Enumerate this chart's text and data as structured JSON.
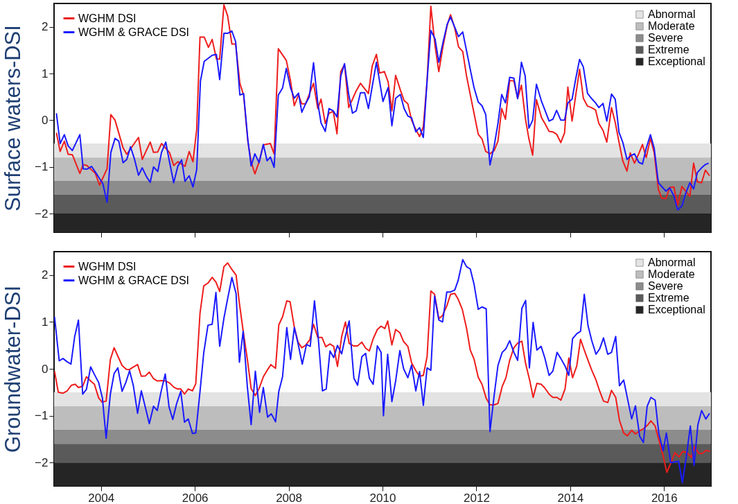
{
  "chart_data": [
    {
      "type": "line",
      "ylabel": "Surface waters-DSI",
      "xlim": [
        2003,
        2017
      ],
      "ylim": [
        -2.4,
        2.5
      ],
      "xticks": [
        2004,
        2006,
        2008,
        2010,
        2012,
        2014,
        2016
      ],
      "yticks": [
        -2,
        -1,
        0,
        1,
        2
      ],
      "tick_labels": "y",
      "grid": false,
      "legend": "top left",
      "bands": [
        {
          "axis": "y",
          "from": -0.5,
          "to": -0.8,
          "label": "Abnormal",
          "color": "#e3e3e3"
        },
        {
          "axis": "y",
          "from": -0.8,
          "to": -1.3,
          "label": "Moderate",
          "color": "#bdbdbd"
        },
        {
          "axis": "y",
          "from": -1.3,
          "to": -1.6,
          "label": "Severe",
          "color": "#8c8c8c"
        },
        {
          "axis": "y",
          "from": -1.6,
          "to": -2.0,
          "label": "Extreme",
          "color": "#5a5a5a"
        },
        {
          "axis": "y",
          "from": -2.0,
          "to": -2.4,
          "label": "Exceptional",
          "color": "#252525"
        }
      ],
      "series": [
        {
          "name": "WGHM DSI",
          "color": "#ee1c1c",
          "x": [
            2003.05,
            2003.13,
            2003.22,
            2003.3,
            2003.39,
            2003.55,
            2003.62,
            2003.7,
            2003.88,
            2003.97,
            2004.13,
            2004.21,
            2004.3,
            2004.47,
            2004.55,
            2004.8,
            2004.88,
            2005.05,
            2005.12,
            2005.21,
            2005.29,
            2005.46,
            2005.55,
            2005.64,
            2005.79,
            2005.88,
            2005.96,
            2006.04,
            2006.11,
            2006.2,
            2006.29,
            2006.37,
            2006.46,
            2006.53,
            2006.62,
            2006.7,
            2006.79,
            2006.87,
            2006.96,
            2007.04,
            2007.13,
            2007.2,
            2007.28,
            2007.37,
            2007.46,
            2007.61,
            2007.69,
            2007.78,
            2007.95,
            2008.04,
            2008.12,
            2008.21,
            2008.28,
            2008.36,
            2008.53,
            2008.62,
            2008.69,
            2008.78,
            2008.86,
            2008.95,
            2009.03,
            2009.11,
            2009.19,
            2009.28,
            2009.44,
            2009.53,
            2009.7,
            2009.78,
            2009.87,
            2009.94,
            2010.04,
            2010.12,
            2010.2,
            2010.28,
            2010.38,
            2010.46,
            2010.54,
            2010.62,
            2010.71,
            2010.79,
            2010.87,
            2010.95,
            2011.03,
            2011.12,
            2011.2,
            2011.29,
            2011.38,
            2011.45,
            2011.54,
            2011.62,
            2011.71,
            2011.79,
            2011.88,
            2011.95,
            2012.04,
            2012.12,
            2012.2,
            2012.29,
            2012.38,
            2012.46,
            2012.54,
            2012.62,
            2012.71,
            2012.8,
            2012.88,
            2012.96,
            2013.05,
            2013.12,
            2013.2,
            2013.28,
            2013.39,
            2013.46,
            2013.55,
            2013.63,
            2013.71,
            2013.8,
            2013.88,
            2013.95,
            2014.04,
            2014.12,
            2014.2,
            2014.28,
            2014.37,
            2014.45,
            2014.54,
            2014.61,
            2014.7,
            2014.78,
            2014.88,
            2014.96,
            2015.04,
            2015.12,
            2015.21,
            2015.28,
            2015.37,
            2015.46,
            2015.54,
            2015.62,
            2015.71,
            2015.79,
            2015.88,
            2015.95,
            2016.04,
            2016.12,
            2016.21,
            2016.29,
            2016.38,
            2016.46,
            2016.55,
            2016.63,
            2016.71,
            2016.8,
            2016.88,
            2016.97
          ],
          "values": [
            -0.27,
            -0.67,
            -0.45,
            -0.73,
            -0.74,
            -1.14,
            -0.95,
            -0.97,
            -1.14,
            -1.39,
            -1.04,
            0.12,
            0.0,
            -0.59,
            -0.73,
            -0.37,
            -0.84,
            -0.47,
            -0.69,
            -0.68,
            -0.5,
            -0.69,
            -0.97,
            -0.89,
            -0.99,
            -0.67,
            -0.89,
            -0.2,
            1.78,
            1.78,
            1.56,
            1.73,
            1.31,
            1.31,
            2.47,
            2.23,
            1.63,
            1.63,
            0.79,
            0.54,
            -0.45,
            -0.89,
            -1.15,
            -0.89,
            -0.53,
            -0.5,
            -0.72,
            1.53,
            1.28,
            0.84,
            0.31,
            0.54,
            0.35,
            0.35,
            0.79,
            0.25,
            0.45,
            -0.07,
            0.15,
            0.19,
            -0.29,
            1.04,
            1.19,
            0.27,
            0.63,
            0.79,
            0.57,
            1.16,
            1.41,
            1.01,
            1.04,
            0.82,
            0.2,
            0.96,
            0.65,
            0.42,
            0.35,
            0.0,
            -0.2,
            -0.35,
            -0.14,
            0.85,
            2.44,
            1.59,
            1.04,
            1.59,
            2.04,
            2.26,
            1.97,
            1.57,
            1.47,
            0.95,
            0.5,
            0.15,
            -0.3,
            -0.4,
            -0.67,
            -0.72,
            -0.65,
            -0.45,
            0.25,
            0.02,
            0.85,
            0.84,
            0.47,
            0.75,
            0.0,
            -0.4,
            -0.75,
            0.44,
            0.05,
            -0.07,
            -0.24,
            -0.25,
            -0.3,
            -0.48,
            -0.27,
            0.71,
            -0.02,
            0.55,
            1.09,
            0.47,
            0.3,
            0.27,
            0.22,
            -0.07,
            -0.22,
            -0.47,
            0.27,
            -0.05,
            -0.47,
            -0.87,
            -1.09,
            -0.7,
            -0.92,
            -0.72,
            -0.52,
            -0.8,
            -0.39,
            -0.7,
            -1.49,
            -1.67,
            -1.68,
            -1.44,
            -1.43,
            -1.82,
            -1.42,
            -1.52,
            -1.63,
            -0.92,
            -1.32,
            -1.34,
            -1.07,
            -1.19
          ]
        },
        {
          "name": "WGHM & GRACE DSI",
          "color": "#1a1aff",
          "x": [
            2003.05,
            2003.13,
            2003.22,
            2003.3,
            2003.39,
            2003.55,
            2003.62,
            2003.7,
            2003.8,
            2003.88,
            2004.04,
            2004.13,
            2004.21,
            2004.3,
            2004.38,
            2004.47,
            2004.55,
            2004.63,
            2004.71,
            2004.8,
            2004.88,
            2004.97,
            2005.05,
            2005.12,
            2005.21,
            2005.29,
            2005.38,
            2005.46,
            2005.55,
            2005.64,
            2005.72,
            2005.79,
            2005.88,
            2005.96,
            2006.04,
            2006.12,
            2006.2,
            2006.37,
            2006.46,
            2006.53,
            2006.62,
            2006.7,
            2006.79,
            2006.87,
            2006.96,
            2007.04,
            2007.13,
            2007.2,
            2007.28,
            2007.37,
            2007.46,
            2007.54,
            2007.61,
            2007.69,
            2007.78,
            2007.87,
            2007.95,
            2008.04,
            2008.12,
            2008.21,
            2008.28,
            2008.36,
            2008.44,
            2008.53,
            2008.62,
            2008.69,
            2008.78,
            2008.86,
            2008.95,
            2009.03,
            2009.11,
            2009.19,
            2009.28,
            2009.36,
            2009.44,
            2009.53,
            2009.62,
            2009.7,
            2009.87,
            2010.01,
            2010.12,
            2010.2,
            2010.28,
            2010.38,
            2010.46,
            2010.54,
            2010.62,
            2010.71,
            2010.79,
            2010.87,
            2010.95,
            2011.03,
            2011.12,
            2011.2,
            2011.29,
            2011.38,
            2011.45,
            2011.54,
            2011.62,
            2011.71,
            2011.79,
            2011.88,
            2011.95,
            2012.04,
            2012.12,
            2012.2,
            2012.29,
            2012.38,
            2012.46,
            2012.54,
            2012.62,
            2012.71,
            2012.8,
            2012.88,
            2012.96,
            2013.04,
            2013.12,
            2013.2,
            2013.28,
            2013.39,
            2013.46,
            2013.55,
            2013.63,
            2013.71,
            2013.8,
            2013.88,
            2013.95,
            2014.04,
            2014.12,
            2014.2,
            2014.28,
            2014.37,
            2014.45,
            2014.54,
            2014.61,
            2014.7,
            2014.78,
            2014.88,
            2014.96,
            2015.04,
            2015.12,
            2015.21,
            2015.28,
            2015.37,
            2015.46,
            2015.54,
            2015.62,
            2015.71,
            2015.79,
            2015.88,
            2015.95,
            2016.04,
            2016.12,
            2016.21,
            2016.29,
            2016.38,
            2016.46,
            2016.55,
            2016.63,
            2016.71,
            2016.8,
            2016.88,
            2016.95
          ],
          "values": [
            0.15,
            -0.5,
            -0.31,
            -0.55,
            -0.65,
            -0.31,
            -1.04,
            -1.05,
            -0.99,
            -1.11,
            -1.36,
            -1.76,
            -0.69,
            -0.39,
            -0.45,
            -0.91,
            -0.84,
            -0.57,
            -0.82,
            -1.18,
            -1.02,
            -1.21,
            -1.33,
            -1.0,
            -1.1,
            -0.69,
            -0.47,
            -0.89,
            -1.34,
            -0.98,
            -0.85,
            -1.31,
            -1.19,
            -1.43,
            -1.06,
            0.84,
            1.26,
            1.39,
            1.41,
            0.87,
            1.86,
            1.86,
            1.91,
            1.68,
            0.54,
            0.57,
            -0.42,
            -0.98,
            -0.72,
            -0.91,
            -0.52,
            -0.87,
            -0.79,
            -1.01,
            0.54,
            0.69,
            1.11,
            0.69,
            0.47,
            0.58,
            0.17,
            0.35,
            0.5,
            1.23,
            0.37,
            -0.06,
            -0.24,
            0.25,
            0.2,
            0.07,
            0.94,
            1.21,
            0.55,
            0.15,
            0.2,
            0.59,
            0.59,
            0.25,
            1.24,
            0.4,
            0.7,
            -0.12,
            0.47,
            0.55,
            0.25,
            0.09,
            0.05,
            -0.25,
            -0.16,
            -0.37,
            0.85,
            1.92,
            1.74,
            1.24,
            1.67,
            2.06,
            2.21,
            1.99,
            1.79,
            1.89,
            1.49,
            1.04,
            0.7,
            0.39,
            0.31,
            0.12,
            -0.96,
            -0.55,
            -0.07,
            0.55,
            0.37,
            0.92,
            0.9,
            0.46,
            1.24,
            0.95,
            -0.17,
            0.0,
            0.77,
            0.4,
            0.22,
            -0.02,
            0.02,
            0.21,
            0.0,
            0.0,
            0.37,
            0.45,
            0.9,
            1.3,
            1.14,
            0.57,
            0.47,
            0.37,
            0.27,
            0.36,
            -0.02,
            0.56,
            0.45,
            -0.26,
            -0.47,
            -0.84,
            -0.77,
            -0.72,
            -0.9,
            -0.94,
            -0.6,
            -0.31,
            -0.6,
            -1.34,
            -1.42,
            -1.52,
            -1.45,
            -1.62,
            -1.92,
            -1.84,
            -1.57,
            -1.34,
            -1.47,
            -1.12,
            -1.02,
            -0.95,
            -0.92
          ]
        }
      ]
    },
    {
      "type": "line",
      "ylabel": "Groundwater-DSI",
      "xlim": [
        2003,
        2017
      ],
      "ylim": [
        -2.5,
        2.5
      ],
      "xticks": [
        2004,
        2006,
        2008,
        2010,
        2012,
        2014,
        2016
      ],
      "yticks": [
        -2,
        -1,
        0,
        1,
        2
      ],
      "grid": false,
      "legend": "top left",
      "bands": [
        {
          "axis": "y",
          "from": -0.5,
          "to": -0.8,
          "label": "Abnormal",
          "color": "#e3e3e3"
        },
        {
          "axis": "y",
          "from": -0.8,
          "to": -1.3,
          "label": "Moderate",
          "color": "#bdbdbd"
        },
        {
          "axis": "y",
          "from": -1.3,
          "to": -1.6,
          "label": "Severe",
          "color": "#8c8c8c"
        },
        {
          "axis": "y",
          "from": -1.6,
          "to": -2.0,
          "label": "Extreme",
          "color": "#5a5a5a"
        },
        {
          "axis": "y",
          "from": -2.0,
          "to": -2.5,
          "label": "Exceptional",
          "color": "#252525"
        }
      ],
      "series": [
        {
          "name": "WGHM DSI",
          "color": "#ee1c1c",
          "x": [
            2003.01,
            2003.09,
            2003.19,
            2003.28,
            2003.37,
            2003.45,
            2003.52,
            2003.61,
            2003.69,
            2003.79,
            2003.86,
            2003.95,
            2004.02,
            2004.11,
            2004.2,
            2004.28,
            2004.36,
            2004.45,
            2004.54,
            2004.6,
            2004.69,
            2004.78,
            2004.86,
            2004.95,
            2005.03,
            2005.12,
            2005.2,
            2005.29,
            2005.38,
            2005.46,
            2005.55,
            2005.63,
            2005.7,
            2005.78,
            2005.86,
            2005.95,
            2006.02,
            2006.11,
            2006.19,
            2006.28,
            2006.37,
            2006.45,
            2006.53,
            2006.62,
            2006.7,
            2006.79,
            2006.88,
            2006.95,
            2007.03,
            2007.12,
            2007.2,
            2007.29,
            2007.37,
            2007.46,
            2007.55,
            2007.62,
            2007.72,
            2007.79,
            2007.87,
            2007.96,
            2008.03,
            2008.12,
            2008.2,
            2008.28,
            2008.36,
            2008.45,
            2008.53,
            2008.62,
            2008.71,
            2008.79,
            2008.88,
            2008.96,
            2009.04,
            2009.13,
            2009.21,
            2009.29,
            2009.38,
            2009.47,
            2009.56,
            2009.64,
            2009.72,
            2009.8,
            2009.89,
            2009.97,
            2010.05,
            2010.11,
            2010.2,
            2010.28,
            2010.37,
            2010.45,
            2010.54,
            2010.62,
            2010.71,
            2010.79,
            2010.87,
            2010.95,
            2011.03,
            2011.11,
            2011.2,
            2011.28,
            2011.37,
            2011.45,
            2011.54,
            2011.61,
            2011.7,
            2011.79,
            2011.87,
            2011.95,
            2012.04,
            2012.12,
            2012.21,
            2012.29,
            2012.38,
            2012.46,
            2012.55,
            2012.63,
            2012.71,
            2012.8,
            2012.88,
            2012.97,
            2013.05,
            2013.14,
            2013.21,
            2013.29,
            2013.38,
            2013.46,
            2013.55,
            2013.63,
            2013.72,
            2013.8,
            2013.89,
            2013.97,
            2014.05,
            2014.14,
            2014.22,
            2014.3,
            2014.38,
            2014.46,
            2014.55,
            2014.63,
            2014.71,
            2014.8,
            2014.88,
            2014.97,
            2015.05,
            2015.14,
            2015.22,
            2015.31,
            2015.39,
            2015.48,
            2015.56,
            2015.65,
            2015.72,
            2015.81,
            2015.89,
            2015.98,
            2016.06,
            2016.15,
            2016.23,
            2016.32,
            2016.4,
            2016.49,
            2016.58,
            2016.65,
            2016.74,
            2016.82,
            2016.9,
            2016.98
          ],
          "values": [
            -0.05,
            -0.5,
            -0.52,
            -0.47,
            -0.35,
            -0.33,
            -0.4,
            -0.37,
            -0.17,
            -0.27,
            -0.33,
            -0.62,
            -0.71,
            -0.69,
            0.2,
            0.45,
            0.27,
            0.07,
            -0.01,
            -0.02,
            0.04,
            0.09,
            -0.16,
            -0.15,
            -0.07,
            -0.21,
            -0.26,
            -0.25,
            -0.26,
            -0.3,
            -0.39,
            -0.43,
            -0.43,
            -0.54,
            -0.43,
            -0.47,
            -0.32,
            1.18,
            1.77,
            1.83,
            1.95,
            1.85,
            1.65,
            2.18,
            2.26,
            2.12,
            2.0,
            1.4,
            0.81,
            0.2,
            -0.42,
            -0.57,
            -0.42,
            -0.17,
            -0.02,
            0.09,
            0.01,
            0.94,
            1.11,
            1.45,
            1.43,
            0.89,
            0.57,
            0.45,
            0.5,
            0.62,
            0.95,
            0.67,
            0.67,
            0.47,
            0.53,
            0.48,
            0.05,
            0.69,
            1.0,
            0.54,
            0.49,
            0.49,
            0.57,
            0.44,
            0.38,
            0.64,
            0.84,
            0.91,
            0.86,
            1.02,
            0.51,
            0.84,
            0.77,
            0.58,
            0.48,
            0.13,
            -0.04,
            -0.16,
            -0.14,
            0.26,
            1.66,
            1.59,
            1.07,
            1.14,
            1.34,
            1.59,
            1.61,
            1.49,
            1.27,
            0.87,
            0.4,
            0.21,
            -0.18,
            -0.33,
            -0.63,
            -0.77,
            -0.77,
            -0.74,
            -0.38,
            -0.19,
            0.18,
            0.45,
            0.55,
            0.59,
            0.11,
            -0.26,
            -0.61,
            -0.31,
            -0.33,
            -0.41,
            -0.54,
            -0.61,
            -0.61,
            -0.67,
            -0.43,
            0.23,
            -0.19,
            0.06,
            0.63,
            0.4,
            0.18,
            -0.03,
            -0.24,
            -0.48,
            -0.69,
            -0.72,
            -0.46,
            -0.61,
            -1.1,
            -1.37,
            -1.43,
            -1.31,
            -1.39,
            -1.32,
            -1.28,
            -1.2,
            -1.11,
            -1.22,
            -1.52,
            -1.86,
            -2.21,
            -1.99,
            -1.79,
            -1.88,
            -1.76,
            -1.79,
            -1.89,
            -1.66,
            -1.81,
            -1.8,
            -1.74,
            -1.76
          ]
        },
        {
          "name": "WGHM & GRACE DSI",
          "color": "#1a1aff",
          "x": [
            2003.01,
            2003.11,
            2003.19,
            2003.28,
            2003.36,
            2003.44,
            2003.52,
            2003.61,
            2003.69,
            2003.78,
            2003.86,
            2003.95,
            2004.03,
            2004.11,
            2004.2,
            2004.28,
            2004.36,
            2004.45,
            2004.53,
            2004.61,
            2004.69,
            2004.78,
            2004.86,
            2004.95,
            2005.03,
            2005.12,
            2005.2,
            2005.28,
            2005.37,
            2005.45,
            2005.53,
            2005.61,
            2005.7,
            2005.78,
            2005.86,
            2005.95,
            2006.02,
            2006.11,
            2006.19,
            2006.28,
            2006.37,
            2006.45,
            2006.53,
            2006.62,
            2006.7,
            2006.79,
            2006.88,
            2006.95,
            2007.03,
            2007.12,
            2007.2,
            2007.29,
            2007.38,
            2007.46,
            2007.55,
            2007.63,
            2007.72,
            2007.79,
            2007.87,
            2007.96,
            2008.04,
            2008.12,
            2008.2,
            2008.29,
            2008.38,
            2008.46,
            2008.55,
            2008.63,
            2008.72,
            2008.8,
            2008.88,
            2008.96,
            2009.04,
            2009.13,
            2009.21,
            2009.29,
            2009.39,
            2009.47,
            2009.56,
            2009.64,
            2009.72,
            2009.8,
            2009.89,
            2009.97,
            2010.02,
            2010.11,
            2010.2,
            2010.28,
            2010.37,
            2010.45,
            2010.54,
            2010.62,
            2010.71,
            2010.79,
            2010.87,
            2010.95,
            2011.03,
            2011.11,
            2011.2,
            2011.28,
            2011.37,
            2011.45,
            2011.54,
            2011.61,
            2011.71,
            2011.79,
            2011.87,
            2011.95,
            2012.04,
            2012.12,
            2012.21,
            2012.29,
            2012.38,
            2012.46,
            2012.55,
            2012.63,
            2012.71,
            2012.8,
            2012.88,
            2012.97,
            2013.05,
            2013.13,
            2013.21,
            2013.29,
            2013.38,
            2013.46,
            2013.55,
            2013.63,
            2013.72,
            2013.8,
            2013.89,
            2013.97,
            2014.05,
            2014.14,
            2014.22,
            2014.3,
            2014.38,
            2014.46,
            2014.55,
            2014.63,
            2014.71,
            2014.8,
            2014.88,
            2014.97,
            2015.05,
            2015.14,
            2015.22,
            2015.31,
            2015.39,
            2015.48,
            2015.56,
            2015.64,
            2015.72,
            2015.81,
            2015.89,
            2015.98,
            2016.05,
            2016.14,
            2016.22,
            2016.31,
            2016.39,
            2016.48,
            2016.56,
            2016.64,
            2016.72,
            2016.8,
            2016.89,
            2016.97
          ],
          "values": [
            1.11,
            0.17,
            0.22,
            0.15,
            0.1,
            0.69,
            1.04,
            -0.54,
            -0.44,
            0.04,
            -0.12,
            -0.29,
            -0.62,
            -1.48,
            -0.54,
            -0.1,
            0.02,
            -0.48,
            -0.29,
            -0.04,
            -0.36,
            -0.95,
            -0.47,
            -0.84,
            -1.17,
            -0.8,
            -0.89,
            -0.49,
            -0.11,
            -0.81,
            -1.08,
            -0.75,
            -0.48,
            -1.14,
            -1.07,
            -1.38,
            -1.37,
            -0.49,
            0.34,
            0.93,
            0.95,
            1.63,
            0.48,
            1.08,
            1.5,
            1.95,
            1.6,
            0.14,
            0.8,
            -0.39,
            -1.19,
            -0.05,
            -0.93,
            -0.4,
            -1.03,
            -0.96,
            -1.13,
            -0.48,
            -0.17,
            0.88,
            0.2,
            0.88,
            0.54,
            0.1,
            0.52,
            0.48,
            1.45,
            0.67,
            -0.47,
            -0.43,
            0.38,
            0.24,
            0.5,
            0.32,
            0.7,
            1.02,
            -0.2,
            -0.35,
            0.26,
            0.33,
            -0.2,
            -0.33,
            0.49,
            0.35,
            -1.0,
            0.31,
            -0.7,
            -0.26,
            0.39,
            0.0,
            -0.19,
            0.08,
            -0.47,
            -0.06,
            -0.78,
            0.02,
            -0.03,
            1.55,
            1.04,
            1.0,
            1.64,
            1.64,
            1.68,
            1.88,
            2.33,
            2.18,
            2.13,
            1.81,
            1.27,
            1.32,
            1.28,
            -1.34,
            -0.56,
            0.07,
            0.35,
            0.43,
            0.6,
            0.35,
            0.18,
            1.29,
            1.46,
            0.02,
            0.99,
            0.4,
            0.48,
            0.23,
            -0.14,
            -0.05,
            0.35,
            0.22,
            0.06,
            -0.14,
            0.64,
            0.75,
            0.8,
            1.59,
            0.92,
            0.6,
            0.31,
            0.43,
            0.66,
            0.31,
            0.35,
            0.69,
            -0.36,
            -0.24,
            -0.63,
            -1.07,
            -0.79,
            -1.44,
            -1.57,
            -0.8,
            -0.61,
            -0.67,
            -1.39,
            -1.75,
            -1.37,
            -2.0,
            -1.99,
            -1.97,
            -2.43,
            -1.84,
            -1.22,
            -2.06,
            -1.2,
            -0.89,
            -1.07,
            -0.95
          ]
        }
      ]
    }
  ]
}
